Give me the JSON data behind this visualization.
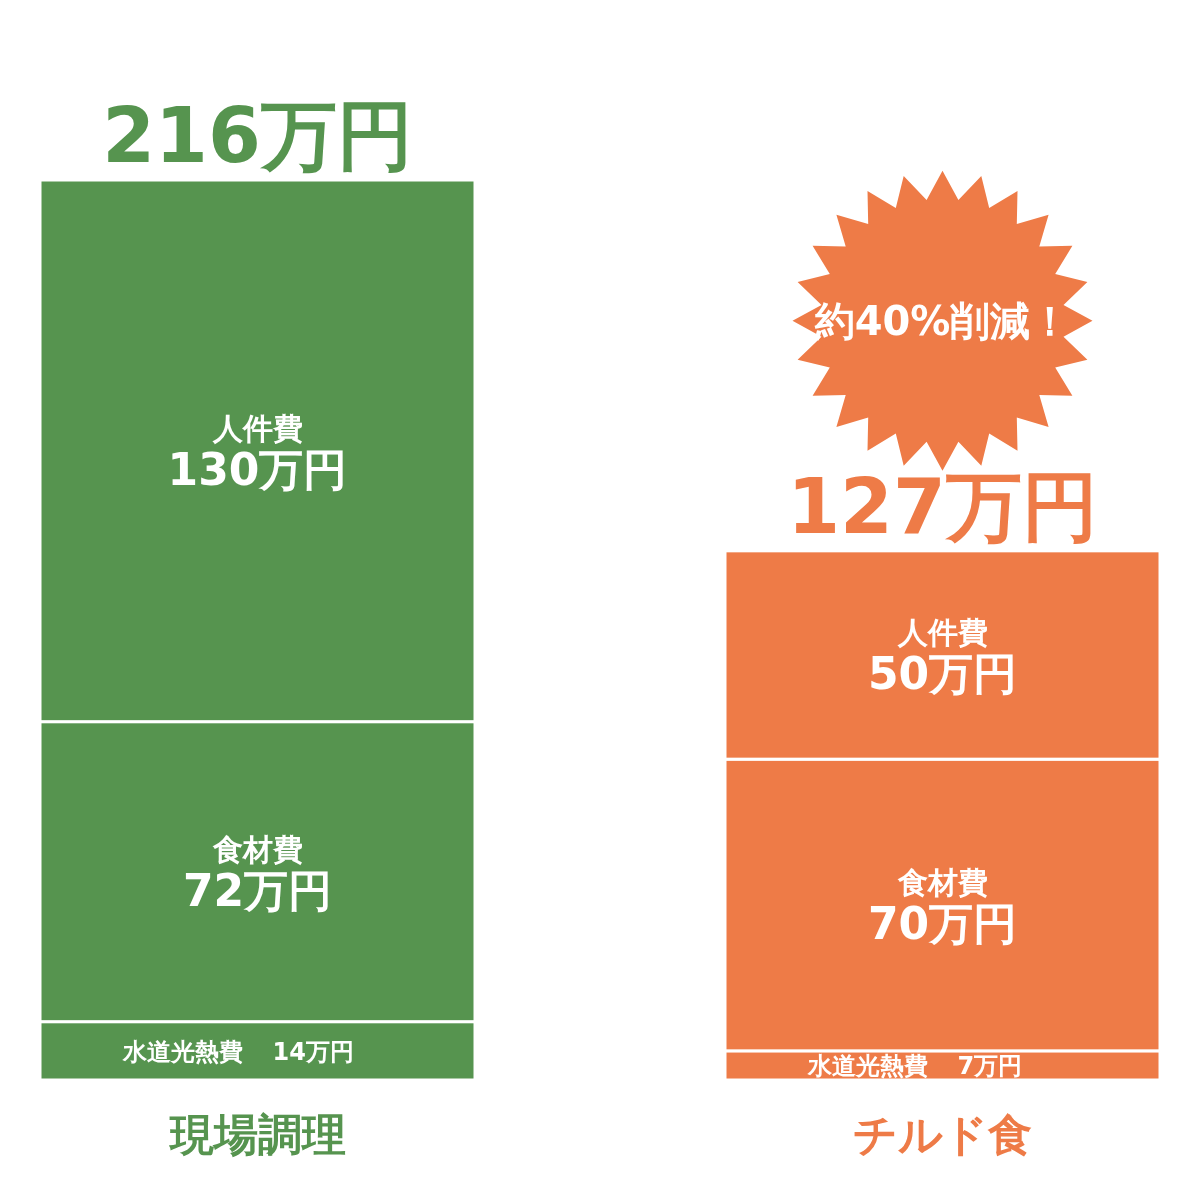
{
  "chart_data": {
    "type": "bar",
    "stacked": true,
    "categories": [
      "現場調理",
      "チルド食"
    ],
    "series": [
      {
        "name": "水道光熱費",
        "colors": [
          "#56944f",
          "#ee7b47"
        ],
        "values": [
          14,
          7
        ],
        "value_labels": [
          "14万円",
          "7万円"
        ]
      },
      {
        "name": "食材費",
        "colors": [
          "#56944f",
          "#ee7b47"
        ],
        "values": [
          72,
          70
        ],
        "value_labels": [
          "72万円",
          "70万円"
        ]
      },
      {
        "name": "人件費",
        "colors": [
          "#56944f",
          "#ee7b47"
        ],
        "values": [
          130,
          50
        ],
        "value_labels": [
          "130万円",
          "50万円"
        ]
      }
    ],
    "totals": [
      "216万円",
      "127万円"
    ],
    "annotations": [
      "約40%削減！"
    ]
  }
}
